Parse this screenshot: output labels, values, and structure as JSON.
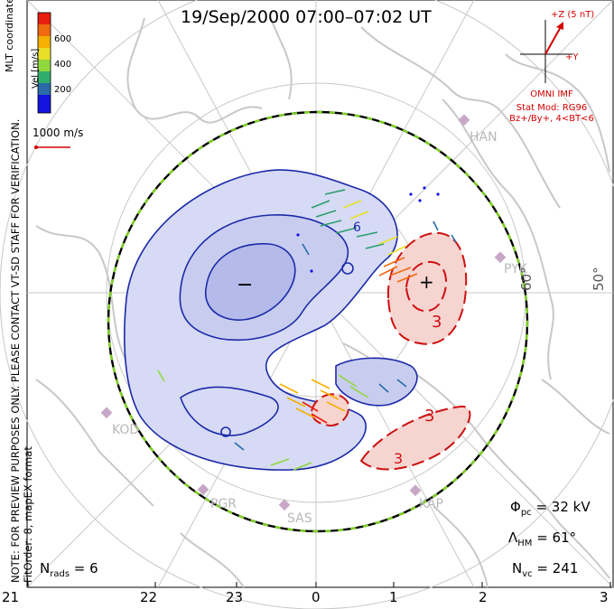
{
  "title": "19/Sep/2000 07:00–07:02 UT",
  "side_note": "NOTE: FOR PREVIEW PURPOSES ONLY. PLEASE CONTACT VT-SD STAFF FOR VERIFICATION.",
  "side_note2": "FitOrder: 8, mapEX format",
  "coordinates_label": "MLT coordinates",
  "colorbar": {
    "label": "Vel [m/s]",
    "ticks": [
      "600",
      "400",
      "200"
    ],
    "colors": [
      "#e81e10",
      "#f06a10",
      "#f5b000",
      "#e8e028",
      "#90d83c",
      "#2fae6e",
      "#2a6aa8",
      "#1414e0"
    ]
  },
  "reference_vector": {
    "label": "1000 m/s",
    "color": "#d40000"
  },
  "imf": {
    "z_label": "+Z (5 nT)",
    "y_label": "+Y",
    "source": "OMNI IMF",
    "stat_mod": "Stat Mod: RG96",
    "condition": "Bz+/By+, 4<BT<6",
    "color": "#d40000"
  },
  "mlt_hour_labels": [
    "21",
    "22",
    "23",
    "0",
    "1",
    "2",
    "3"
  ],
  "latitude_labels": [
    "60°",
    "50°"
  ],
  "radar_sites": [
    "HAN",
    "PYK",
    "KOD",
    "PGR",
    "SAS",
    "KAP"
  ],
  "contour_labels": {
    "minus": "−",
    "plus": "+",
    "neg_value": "6",
    "pos_value": "3"
  },
  "stats": {
    "phi_pc": "Φ",
    "phi_pc_sub": "pc",
    "phi_pc_value": " = 32 kV",
    "lambda_hm": "Λ",
    "lambda_hm_sub": "HM",
    "lambda_hm_value": " = 61°",
    "n_vc": "N",
    "n_vc_sub": "vc",
    "n_vc_value": " = 241",
    "n_rads": "N",
    "n_rads_sub": "rads",
    "n_rads_value": " = 6"
  },
  "colors": {
    "negative_cell": "#c8cdf0",
    "negative_core": "#a9afe6",
    "negative_line": "#1c2aa8",
    "positive_cell": "#f6d4d0",
    "positive_line": "#cc1111",
    "boundary_dash": "#7ed321",
    "landmass": "#c8c8c8"
  }
}
